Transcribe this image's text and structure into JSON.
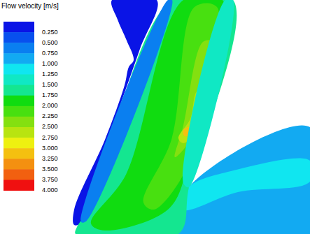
{
  "chart_data": {
    "type": "contour",
    "title": "Flow velocity [m/s]",
    "colorbar": {
      "ticks": [
        {
          "value": 0.25,
          "label": "0.250"
        },
        {
          "value": 0.5,
          "label": "0.500"
        },
        {
          "value": 0.75,
          "label": "0.750"
        },
        {
          "value": 1.0,
          "label": "1.000"
        },
        {
          "value": 1.25,
          "label": "1.250"
        },
        {
          "value": 1.5,
          "label": "1.500"
        },
        {
          "value": 1.75,
          "label": "1.750"
        },
        {
          "value": 2.0,
          "label": "2.000"
        },
        {
          "value": 2.25,
          "label": "2.250"
        },
        {
          "value": 2.5,
          "label": "2.500"
        },
        {
          "value": 2.75,
          "label": "2.750"
        },
        {
          "value": 3.0,
          "label": "3.000"
        },
        {
          "value": 3.25,
          "label": "3.250"
        },
        {
          "value": 3.5,
          "label": "3.500"
        },
        {
          "value": 3.75,
          "label": "3.750"
        },
        {
          "value": 4.0,
          "label": "4.000"
        }
      ],
      "colors": [
        "#0a14e6",
        "#0850ee",
        "#0a7ff0",
        "#12aaf2",
        "#10e6f0",
        "#10e8c4",
        "#14e690",
        "#10dc10",
        "#48e010",
        "#84e010",
        "#b8e410",
        "#eef010",
        "#f4c010",
        "#f49010",
        "#f26010",
        "#f01010"
      ]
    },
    "regions": {
      "values": [
        0.1,
        0.9,
        1.1,
        1.6,
        1.9,
        2.1,
        2.3,
        2.6,
        3.1,
        1.3,
        0.6
      ]
    }
  }
}
